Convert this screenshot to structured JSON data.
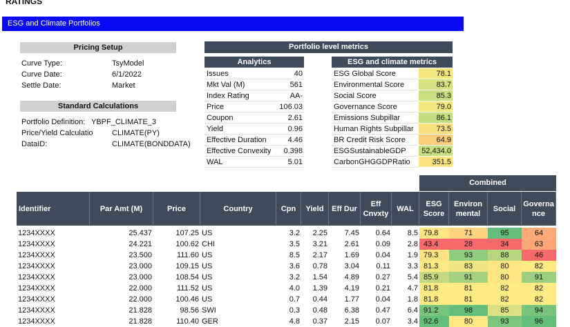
{
  "logo": "RATINGS",
  "banner": "ESG and Climate Portfolios",
  "pricing_setup": {
    "title": "Pricing Setup",
    "rows": [
      [
        "Curve Type:",
        "TsyModel"
      ],
      [
        "Curve Date:",
        "6/1/2022"
      ],
      [
        "Settle Date:",
        "Market"
      ]
    ]
  },
  "standard_calculations": {
    "title": "Standard Calculations",
    "rows": [
      [
        "Portfolio Definition:",
        "YBPF_CLIMATE_3"
      ],
      [
        "Price/Yield Calculatio",
        "CLIMATE(PY)"
      ],
      [
        "DataID:",
        "CLIMATE(BONDDATA)"
      ]
    ]
  },
  "portfolio_metrics": {
    "title": "Portfolio level metrics",
    "analytics": {
      "title": "Analytics",
      "rows": [
        [
          "Issues",
          "40"
        ],
        [
          "Mkt Val (M)",
          "561"
        ],
        [
          "Index Rating",
          "AA-"
        ],
        [
          "Price",
          "106.03"
        ],
        [
          "Coupon",
          "2.61"
        ],
        [
          "Yield",
          "0.96"
        ],
        [
          "Effective Duration",
          "4.46"
        ],
        [
          "Effective Convexity",
          "0.398"
        ],
        [
          "WAL",
          "5.01"
        ]
      ]
    },
    "esg": {
      "title": "ESG and climate metrics",
      "rows": [
        [
          "ESG Global Score",
          "78.1"
        ],
        [
          "Environmental Score",
          "83.7"
        ],
        [
          "Social Score",
          "85.3"
        ],
        [
          "Governance Score",
          "79.0"
        ],
        [
          "Emissions Subpillar",
          "86.1"
        ],
        [
          "Human Rights Subpillar",
          "73.5"
        ],
        [
          "BR Credit Risk Score",
          "64.9"
        ],
        [
          "ESGSustainableGDP",
          "52,434.0"
        ],
        [
          "CarbonGHGGDPRatio",
          "351.5"
        ]
      ],
      "colors": [
        "#f3e77c",
        "#d5e27f",
        "#c9df7f",
        "#f2e77d",
        "#c3de7f",
        "#fbe07f",
        "#fccd7b",
        "#c7df80",
        "#fde47f"
      ]
    }
  },
  "holdings": {
    "group_header": "Combined",
    "columns": [
      "Identifier",
      "Par Amt (M)",
      "Price",
      "Country",
      "Cpn",
      "Yield",
      "Eff Dur",
      "Eff Cnvxty",
      "WAL",
      "ESG Score",
      "Environ mental",
      "Social",
      "Governa nce"
    ],
    "rows": [
      [
        "1234XXXX",
        "25.437",
        "107.25",
        "US",
        "3.2",
        "2.25",
        "7.45",
        "0.64",
        "8.5",
        "79.8",
        "71",
        "95",
        "64"
      ],
      [
        "1234XXXX",
        "24.221",
        "100.62",
        "CHI",
        "3.5",
        "3.21",
        "2.61",
        "0.09",
        "2.8",
        "43.4",
        "28",
        "34",
        "63"
      ],
      [
        "1234XXXX",
        "23.500",
        "111.60",
        "US",
        "8.5",
        "2.17",
        "1.69",
        "0.04",
        "1.9",
        "79.3",
        "93",
        "88",
        "46"
      ],
      [
        "1234XXXX",
        "23.000",
        "109.15",
        "US",
        "3.6",
        "0.78",
        "3.04",
        "0.11",
        "3.3",
        "81.3",
        "83",
        "80",
        "82"
      ],
      [
        "1234XXXX",
        "23.000",
        "108.54",
        "US",
        "3.2",
        "1.54",
        "4.89",
        "0.27",
        "5.4",
        "85.9",
        "91",
        "80",
        "91"
      ],
      [
        "1234XXXX",
        "22.000",
        "111.52",
        "US",
        "4.0",
        "1.39",
        "4.19",
        "0.21",
        "4.7",
        "81.8",
        "81",
        "82",
        "82"
      ],
      [
        "1234XXXX",
        "22.000",
        "100.46",
        "US",
        "0.7",
        "0.44",
        "1.77",
        "0.04",
        "1.8",
        "81.8",
        "81",
        "82",
        "82"
      ],
      [
        "1234XXXX",
        "21.828",
        "98.56",
        "SWI",
        "0.3",
        "0.48",
        "6.38",
        "0.47",
        "6.4",
        "91.2",
        "98",
        "85",
        "94"
      ],
      [
        "1234XXXX",
        "21.828",
        "110.40",
        "GER",
        "4.8",
        "0.37",
        "2.15",
        "0.07",
        "3.4",
        "92.6",
        "80",
        "93",
        "96"
      ]
    ]
  }
}
